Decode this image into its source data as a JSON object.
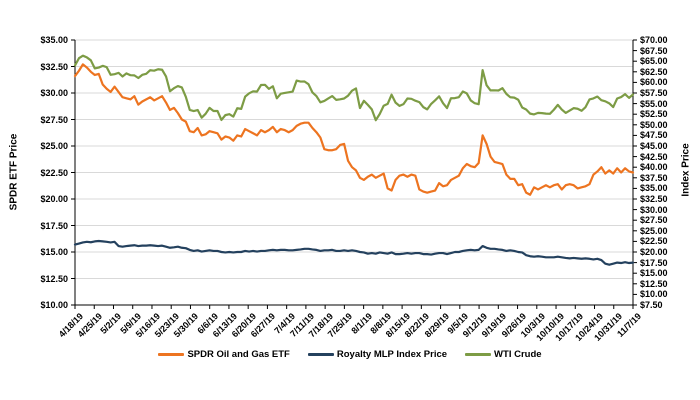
{
  "chart_data": {
    "type": "line",
    "title": "",
    "ylabel_left": "SPDR ETF Price",
    "ylabel_right": "Index Price",
    "grid": "horizontal",
    "legend_position": "bottom",
    "y_left": {
      "min": 10,
      "max": 35,
      "step": 2.5,
      "tick_labels": [
        "$35.00",
        "$32.50",
        "$30.00",
        "$27.50",
        "$25.00",
        "$22.50",
        "$20.00",
        "$17.50",
        "$15.00",
        "$12.50",
        "$10.00"
      ]
    },
    "y_right": {
      "min": 7.5,
      "max": 70,
      "step": 2.5,
      "tick_labels": [
        "$70.00",
        "$67.50",
        "$65.00",
        "$62.50",
        "$60.00",
        "$57.50",
        "$55.00",
        "$52.50",
        "$50.00",
        "$47.50",
        "$45.00",
        "$42.50",
        "$40.00",
        "$37.50",
        "$35.00",
        "$32.50",
        "$30.00",
        "$27.50",
        "$25.00",
        "$22.50",
        "$20.00",
        "$17.50",
        "$15.00",
        "$12.50",
        "$10.00",
        "$7.50"
      ]
    },
    "x_tick_labels": [
      "4/18/19",
      "4/25/19",
      "5/2/19",
      "5/9/19",
      "5/16/19",
      "5/23/19",
      "5/30/19",
      "6/6/19",
      "6/13/19",
      "6/20/19",
      "6/27/19",
      "7/4/19",
      "7/11/19",
      "7/18/19",
      "7/25/19",
      "8/1/19",
      "8/8/19",
      "8/15/19",
      "8/22/19",
      "8/29/19",
      "9/5/19",
      "9/12/19",
      "9/19/19",
      "9/26/19",
      "10/3/19",
      "10/10/19",
      "10/17/19",
      "10/24/19",
      "10/31/19",
      "11/7/19"
    ],
    "x_frequency": "daily (weekly tick labels)",
    "series": [
      {
        "name": "SPDR Oil and Gas ETF",
        "color": "#ED7420",
        "axis": "left",
        "values": [
          31.6,
          32.1,
          32.7,
          32.4,
          32.0,
          31.7,
          31.8,
          30.8,
          30.4,
          30.1,
          30.6,
          30.1,
          29.6,
          29.5,
          29.4,
          29.7,
          28.9,
          29.2,
          29.4,
          29.6,
          29.3,
          29.5,
          29.7,
          29.1,
          28.4,
          28.6,
          28.1,
          27.5,
          27.3,
          26.4,
          26.3,
          26.7,
          26.0,
          26.1,
          26.4,
          26.3,
          26.2,
          25.6,
          25.9,
          25.8,
          25.5,
          26.0,
          25.9,
          26.6,
          26.4,
          26.2,
          26.0,
          26.5,
          26.3,
          26.5,
          26.8,
          26.3,
          26.6,
          26.5,
          26.3,
          26.5,
          26.9,
          27.1,
          27.2,
          27.2,
          26.7,
          26.3,
          25.8,
          24.7,
          24.6,
          24.6,
          24.7,
          25.1,
          25.2,
          23.6,
          23.0,
          22.7,
          22.0,
          21.8,
          22.1,
          22.3,
          22.0,
          22.2,
          22.4,
          21.0,
          20.8,
          21.8,
          22.2,
          22.3,
          22.1,
          22.3,
          22.2,
          20.9,
          20.7,
          20.6,
          20.7,
          20.8,
          21.5,
          21.2,
          21.3,
          21.8,
          22.0,
          22.2,
          22.9,
          23.3,
          23.1,
          23.0,
          23.4,
          26.0,
          25.2,
          24.0,
          23.5,
          23.4,
          23.3,
          22.3,
          21.9,
          21.9,
          21.3,
          21.4,
          20.6,
          20.4,
          21.1,
          20.9,
          21.1,
          21.3,
          21.1,
          21.3,
          21.4,
          20.9,
          21.3,
          21.4,
          21.3,
          21.0,
          21.1,
          21.2,
          21.4,
          22.3,
          22.6,
          23.0,
          22.4,
          22.7,
          22.4,
          22.9,
          22.5,
          22.9,
          22.6,
          22.5
        ]
      },
      {
        "name": "Royalty MLP Index Price",
        "color": "#24415E",
        "axis": "right",
        "values": [
          21.75,
          22.0,
          22.25,
          22.4,
          22.3,
          22.5,
          22.6,
          22.5,
          22.4,
          22.25,
          22.4,
          21.4,
          21.25,
          21.4,
          21.5,
          21.6,
          21.4,
          21.5,
          21.5,
          21.6,
          21.5,
          21.4,
          21.5,
          21.25,
          21.0,
          21.1,
          21.25,
          21.0,
          20.9,
          20.5,
          20.25,
          20.4,
          20.1,
          20.25,
          20.4,
          20.25,
          20.25,
          20.0,
          19.9,
          20.0,
          19.9,
          20.0,
          20.0,
          20.25,
          20.1,
          20.25,
          20.1,
          20.25,
          20.25,
          20.4,
          20.5,
          20.4,
          20.5,
          20.5,
          20.4,
          20.4,
          20.5,
          20.6,
          20.75,
          20.75,
          20.6,
          20.5,
          20.25,
          20.4,
          20.4,
          20.5,
          20.25,
          20.25,
          20.4,
          20.25,
          20.4,
          20.25,
          20.0,
          19.9,
          19.6,
          19.75,
          19.6,
          19.9,
          19.75,
          19.6,
          19.9,
          19.5,
          19.5,
          19.6,
          19.75,
          19.6,
          19.75,
          19.75,
          19.5,
          19.5,
          19.4,
          19.6,
          19.75,
          19.75,
          19.5,
          19.75,
          20.0,
          20.0,
          20.25,
          20.4,
          20.5,
          20.4,
          20.5,
          21.4,
          21.0,
          20.75,
          20.75,
          20.6,
          20.5,
          20.25,
          20.4,
          20.25,
          20.0,
          19.9,
          19.25,
          19.0,
          18.9,
          19.0,
          18.9,
          18.75,
          18.75,
          18.75,
          18.9,
          18.75,
          18.6,
          18.5,
          18.6,
          18.5,
          18.4,
          18.5,
          18.4,
          18.25,
          18.4,
          18.1,
          17.25,
          17.0,
          17.25,
          17.5,
          17.4,
          17.6,
          17.4,
          17.5
        ]
      },
      {
        "name": "WTI Crude",
        "color": "#7D9C45",
        "axis": "right",
        "values": [
          64.0,
          65.7,
          66.3,
          65.89,
          65.21,
          63.3,
          63.5,
          63.91,
          63.6,
          61.81,
          61.94,
          62.25,
          61.4,
          62.12,
          61.7,
          61.66,
          61.04,
          61.78,
          62.02,
          62.87,
          62.76,
          63.1,
          62.99,
          61.42,
          57.91,
          58.63,
          59.14,
          58.81,
          56.59,
          53.5,
          53.25,
          53.48,
          51.68,
          52.59,
          53.99,
          53.26,
          53.27,
          51.14,
          52.28,
          52.51,
          51.93,
          53.9,
          53.76,
          56.65,
          57.43,
          57.9,
          57.83,
          59.38,
          59.43,
          58.47,
          59.09,
          56.25,
          57.34,
          57.51,
          57.66,
          57.83,
          60.43,
          60.2,
          60.21,
          59.58,
          57.62,
          56.78,
          55.3,
          55.63,
          56.22,
          56.77,
          55.88,
          56.02,
          56.2,
          56.87,
          58.05,
          58.58,
          53.95,
          55.66,
          54.69,
          53.63,
          51.09,
          52.54,
          54.5,
          54.93,
          57.1,
          55.23,
          54.47,
          54.87,
          56.21,
          56.13,
          55.68,
          55.35,
          54.17,
          53.64,
          54.93,
          55.78,
          56.71,
          55.1,
          53.94,
          56.26,
          56.3,
          56.52,
          57.85,
          57.4,
          55.75,
          55.09,
          54.85,
          62.9,
          59.34,
          58.11,
          58.13,
          58.09,
          58.64,
          57.29,
          56.49,
          56.41,
          55.91,
          54.07,
          53.62,
          52.64,
          52.45,
          52.81,
          52.75,
          52.63,
          52.59,
          53.55,
          54.7,
          53.59,
          52.81,
          53.36,
          53.93,
          53.78,
          53.31,
          54.16,
          55.97,
          56.23,
          56.66,
          55.81,
          55.54,
          55.06,
          54.18,
          56.2,
          56.54,
          57.23,
          56.35,
          57.15
        ]
      }
    ]
  },
  "colors": {
    "background": "#FFFFFF",
    "gridline": "#D9D9D9",
    "axis_line": "#000000",
    "text": "#000000"
  }
}
